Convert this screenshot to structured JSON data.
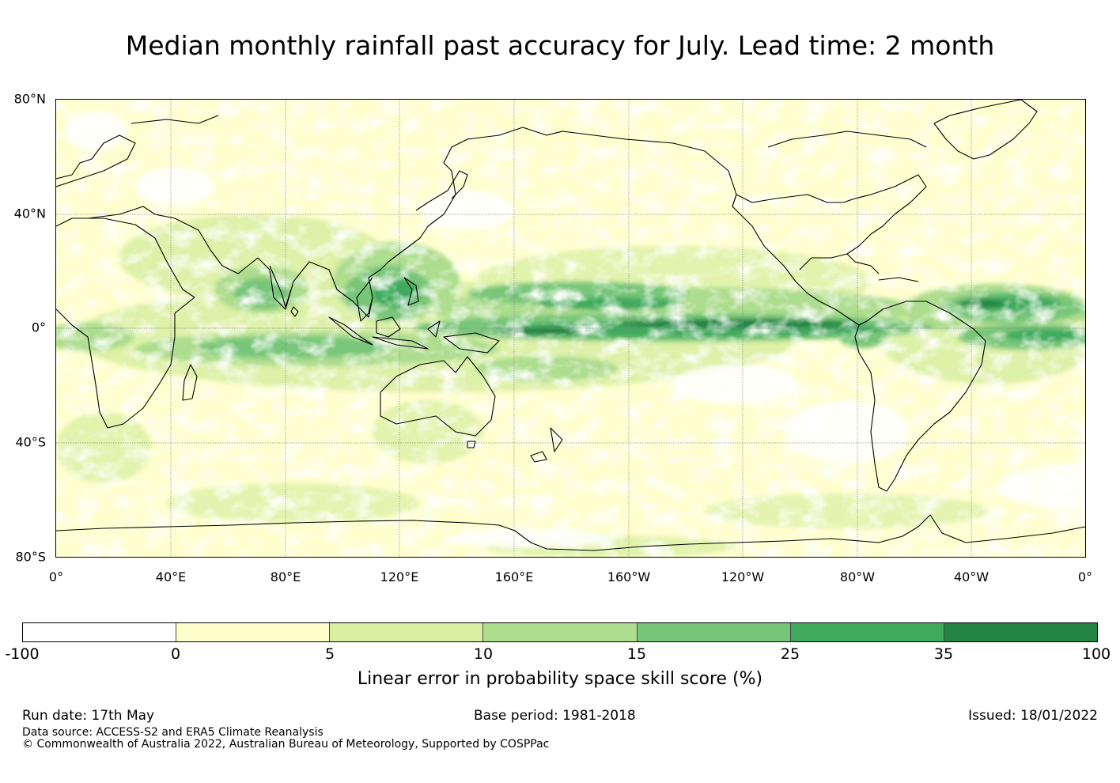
{
  "title": "Median monthly rainfall past accuracy for July. Lead time: 2 month",
  "map": {
    "lat_labels": [
      "80°N",
      "40°N",
      "0°",
      "40°S",
      "80°S"
    ],
    "lon_labels": [
      "0°",
      "40°E",
      "80°E",
      "120°E",
      "160°E",
      "160°W",
      "120°W",
      "80°W",
      "40°W",
      "0°"
    ],
    "lon_range": [
      0,
      360
    ],
    "lat_range": [
      -80,
      80
    ]
  },
  "legend": {
    "label": "Linear error in probability space skill score (%)",
    "ticks": [
      "-100",
      "0",
      "5",
      "10",
      "15",
      "25",
      "35",
      "100"
    ],
    "colors": [
      "#ffffff",
      "#ffffcc",
      "#d9f0a3",
      "#addd8e",
      "#78c679",
      "#41ab5d",
      "#238443"
    ]
  },
  "footer": {
    "run_date": "Run date: 17th May",
    "base_period": "Base period: 1981-2018",
    "issued": "Issued: 18/01/2022",
    "data_source": "Data source: ACCESS-S2 and ERA5 Climate Reanalysis",
    "copyright": "© Commonwealth of Australia 2022, Australian Bureau of Meteorology, Supported by COSPPac"
  }
}
